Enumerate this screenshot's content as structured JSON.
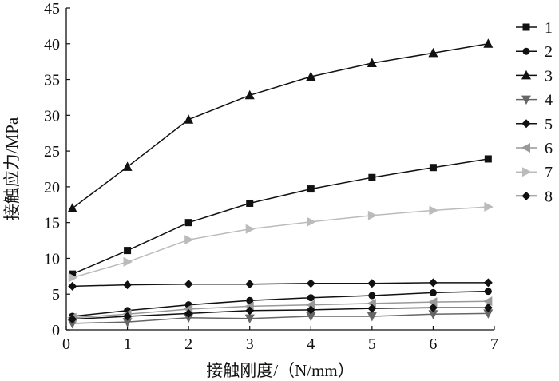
{
  "chart_data": {
    "type": "line",
    "title": "",
    "xlabel": "接触刚度/（N/mm）",
    "ylabel": "接触应力/MPa",
    "xlim": [
      0,
      7
    ],
    "ylim": [
      0,
      45
    ],
    "x_ticks": [
      "0",
      "1",
      "2",
      "3",
      "4",
      "5",
      "6",
      "7"
    ],
    "y_ticks": [
      "0",
      "5",
      "10",
      "15",
      "20",
      "25",
      "30",
      "35",
      "40",
      "45"
    ],
    "grid": false,
    "legend_position": "right",
    "x": [
      0.1,
      1,
      2,
      3,
      4,
      5,
      6,
      6.9
    ],
    "series": [
      {
        "name": "1",
        "marker": "square",
        "color": "#111111",
        "values": [
          7.8,
          11.1,
          15.0,
          17.7,
          19.7,
          21.3,
          22.7,
          23.9
        ]
      },
      {
        "name": "2",
        "marker": "circle",
        "color": "#111111",
        "values": [
          1.9,
          2.7,
          3.5,
          4.1,
          4.5,
          4.8,
          5.2,
          5.4
        ]
      },
      {
        "name": "3",
        "marker": "triangle-up",
        "color": "#111111",
        "values": [
          17.0,
          22.8,
          29.4,
          32.8,
          35.4,
          37.3,
          38.7,
          40.0
        ]
      },
      {
        "name": "4",
        "marker": "triangle-down",
        "color": "#666666",
        "values": [
          0.9,
          1.1,
          1.7,
          1.6,
          1.9,
          1.9,
          2.2,
          2.3
        ]
      },
      {
        "name": "5",
        "marker": "diamond",
        "color": "#111111",
        "values": [
          6.1,
          6.3,
          6.4,
          6.4,
          6.5,
          6.5,
          6.6,
          6.6
        ]
      },
      {
        "name": "6",
        "marker": "triangle-left",
        "color": "#999999",
        "values": [
          1.7,
          2.2,
          2.9,
          3.3,
          3.5,
          3.7,
          3.9,
          4.0
        ]
      },
      {
        "name": "7",
        "marker": "triangle-right",
        "color": "#bbbbbb",
        "values": [
          7.3,
          9.5,
          12.6,
          14.1,
          15.1,
          16.0,
          16.7,
          17.2
        ]
      },
      {
        "name": "8",
        "marker": "diamond",
        "color": "#111111",
        "values": [
          1.5,
          1.9,
          2.3,
          2.7,
          2.8,
          3.0,
          3.1,
          3.1
        ]
      }
    ]
  }
}
